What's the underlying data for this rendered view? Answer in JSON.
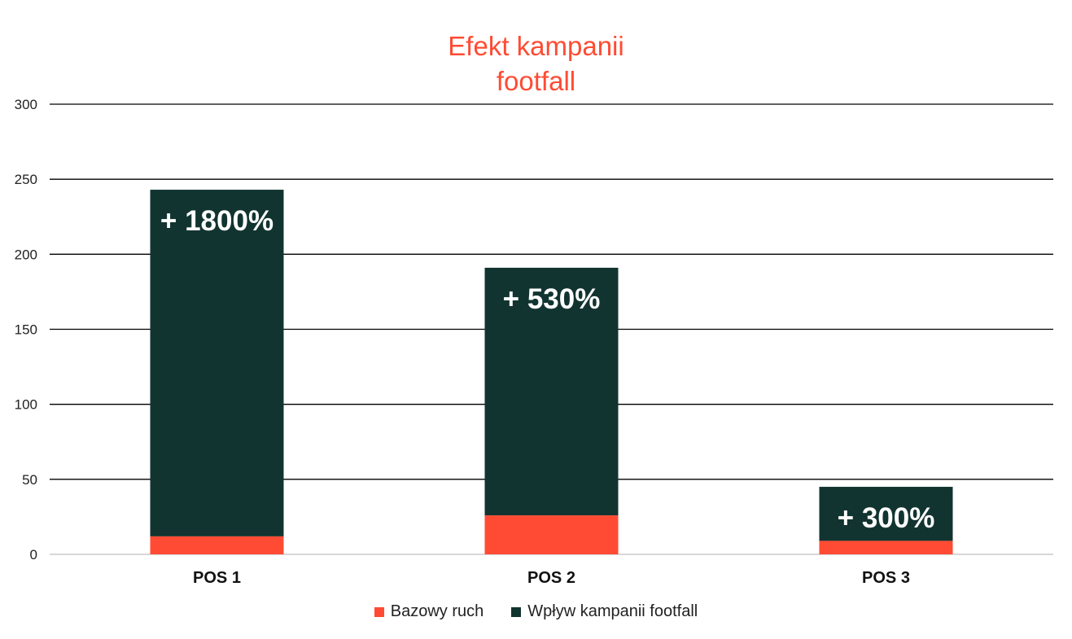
{
  "chart_data": {
    "type": "bar",
    "stacked": true,
    "title_lines": [
      "Efekt kampanii",
      "footfall"
    ],
    "categories": [
      "POS 1",
      "POS 2",
      "POS 3"
    ],
    "series": [
      {
        "name": "Bazowy ruch",
        "color": "#ff4b33",
        "values": [
          12,
          26,
          9
        ]
      },
      {
        "name": "Wpływ kampanii footfall",
        "color": "#123430",
        "values": [
          231,
          165,
          36
        ]
      }
    ],
    "annotations": [
      "+ 1800%",
      "+ 530%",
      "+ 300%"
    ],
    "ylim": [
      0,
      300
    ],
    "yticks": [
      0,
      50,
      100,
      150,
      200,
      250,
      300
    ],
    "grid": true,
    "legend_position": "bottom"
  }
}
